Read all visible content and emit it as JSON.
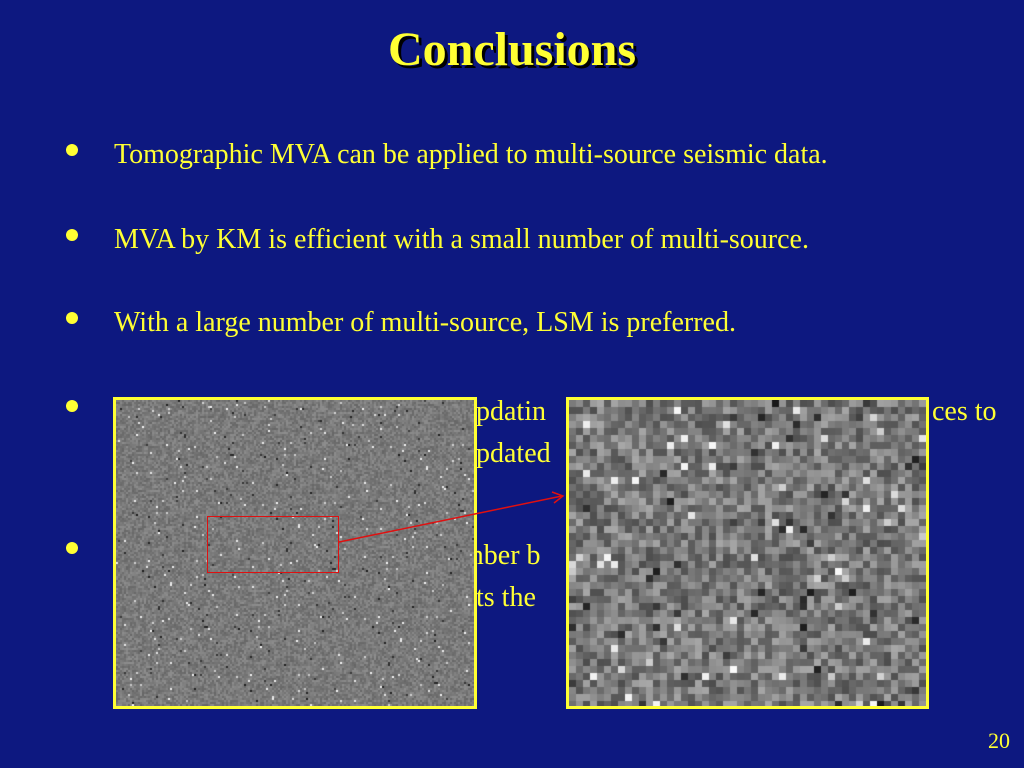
{
  "title": "Conclusions",
  "bullets": [
    {
      "text": "Tomographic MVA can be applied to multi-source seismic data."
    },
    {
      "text": "MVA by KM is efficient with a small number of multi-source."
    },
    {
      "text": "With a large number of multi-source, LSM is preferred."
    }
  ],
  "partial_fragments": {
    "line4a": "updatin",
    "line4b": "ces to",
    "line4c": "updated",
    "line5a": "mber b",
    "line5b": "nts the"
  },
  "page_number": "20",
  "colors": {
    "background": "#0d1880",
    "text": "#ffff33",
    "frame": "#ffff33",
    "roi": "#e01010"
  }
}
